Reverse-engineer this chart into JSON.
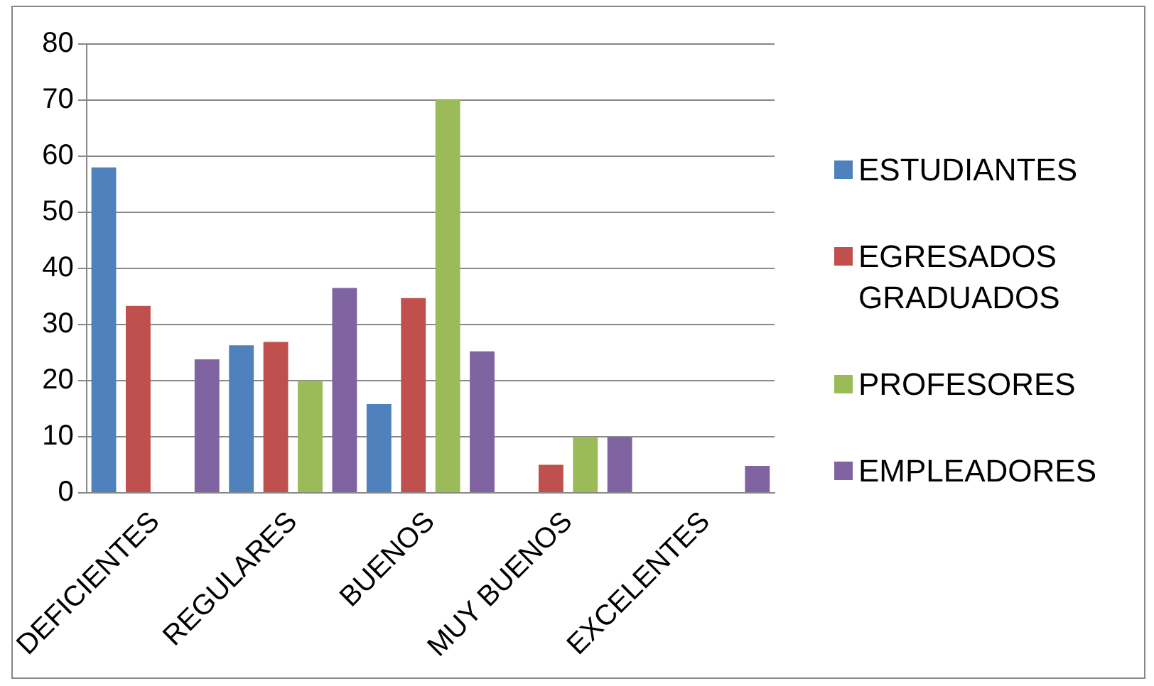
{
  "chart_data": {
    "type": "bar",
    "categories": [
      "DEFICIENTES",
      "REGULARES",
      "BUENOS",
      "MUY BUENOS",
      "EXCELENTES"
    ],
    "series": [
      {
        "name": "ESTUDIANTES",
        "color": "#4f81bd",
        "values": [
          58,
          26.3,
          15.8,
          0,
          0
        ]
      },
      {
        "name": "EGRESADOS GRADUADOS",
        "color": "#c0504d",
        "values": [
          33.3,
          26.9,
          34.7,
          5,
          0
        ]
      },
      {
        "name": "PROFESORES",
        "color": "#9bbb59",
        "values": [
          0,
          20,
          70,
          10,
          0
        ]
      },
      {
        "name": "EMPLEADORES",
        "color": "#8064a2",
        "values": [
          23.8,
          36.5,
          25.2,
          9.9,
          4.8
        ]
      }
    ],
    "ylim": [
      0,
      80
    ],
    "yticks": [
      0,
      10,
      20,
      30,
      40,
      50,
      60,
      70,
      80
    ],
    "grid": "y",
    "legend": "right"
  }
}
